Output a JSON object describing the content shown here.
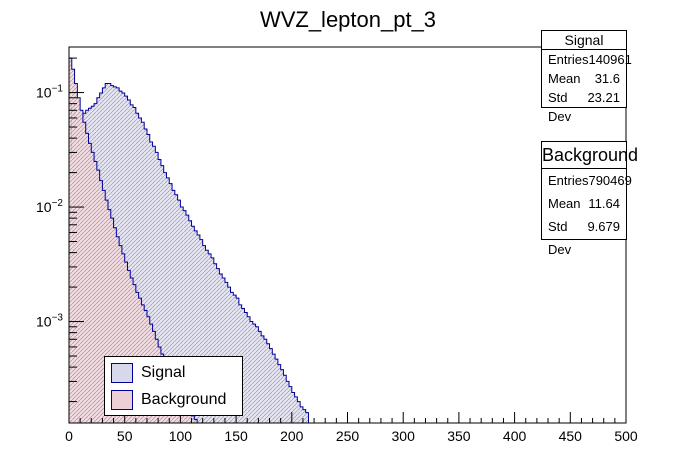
{
  "chart_data": {
    "type": "histogram",
    "title": "WVZ_lepton_pt_3",
    "xlabel": "",
    "ylabel": "",
    "xlim": [
      0,
      500
    ],
    "ylim": [
      0.00013,
      0.25
    ],
    "log_y": true,
    "x_ticks": [
      "0",
      "50",
      "100",
      "150",
      "200",
      "250",
      "300",
      "350",
      "400",
      "450",
      "500"
    ],
    "y_tick_labels": [
      {
        "value": 0.1,
        "base": "10",
        "exp": "−1"
      },
      {
        "value": 0.01,
        "base": "10",
        "exp": "−2"
      },
      {
        "value": 0.001,
        "base": "10",
        "exp": "−3"
      }
    ],
    "bin_width": 2.5,
    "series": [
      {
        "name": "Signal",
        "color": "#00009a",
        "fill": "#d8d8ec",
        "start": 0,
        "values": [
          0.027,
          0.08,
          0.058,
          0.06,
          0.062,
          0.066,
          0.07,
          0.073,
          0.076,
          0.08,
          0.09,
          0.099,
          0.11,
          0.12,
          0.12,
          0.115,
          0.112,
          0.11,
          0.103,
          0.099,
          0.093,
          0.086,
          0.078,
          0.074,
          0.066,
          0.06,
          0.055,
          0.048,
          0.043,
          0.037,
          0.034,
          0.03,
          0.026,
          0.023,
          0.02,
          0.018,
          0.016,
          0.014,
          0.0128,
          0.0115,
          0.01,
          0.0093,
          0.0085,
          0.0076,
          0.0068,
          0.0062,
          0.0057,
          0.0052,
          0.0046,
          0.0042,
          0.0039,
          0.0036,
          0.0032,
          0.0029,
          0.0026,
          0.0024,
          0.0022,
          0.002,
          0.0018,
          0.0017,
          0.0016,
          0.0014,
          0.0013,
          0.0012,
          0.0011,
          0.001,
          0.00095,
          0.0009,
          0.00082,
          0.00075,
          0.0007,
          0.00064,
          0.00058,
          0.00052,
          0.00047,
          0.00042,
          0.00038,
          0.00034,
          0.0003,
          0.00027,
          0.00024,
          0.00022,
          0.0002,
          0.00018,
          0.00017,
          0.00016
        ]
      },
      {
        "name": "Background",
        "color": "#00009a",
        "fill": "#ecd0d6",
        "start": 0,
        "values": [
          0.2,
          0.16,
          0.12,
          0.09,
          0.07,
          0.055,
          0.044,
          0.036,
          0.03,
          0.025,
          0.021,
          0.017,
          0.014,
          0.0115,
          0.0095,
          0.008,
          0.0066,
          0.0055,
          0.0046,
          0.0039,
          0.0033,
          0.0028,
          0.0024,
          0.0021,
          0.0018,
          0.0016,
          0.0014,
          0.00125,
          0.0011,
          0.00095,
          0.00082,
          0.0007,
          0.0006,
          0.00052,
          0.00044,
          0.00038,
          0.00033,
          0.00029,
          0.00025,
          0.00022,
          0.0002,
          0.00018,
          0.00017,
          0.00016,
          0.00015,
          0.00014
        ]
      }
    ],
    "legend": {
      "position": "bottom-left",
      "entries": [
        "Signal",
        "Background"
      ]
    }
  },
  "stats": {
    "signal": {
      "title": "Signal",
      "entries_label": "Entries",
      "entries": "140961",
      "mean_label": "Mean",
      "mean": "31.6",
      "std_label": "Std Dev",
      "std": "23.21"
    },
    "background": {
      "title": "Background",
      "entries_label": "Entries",
      "entries": "790469",
      "mean_label": "Mean",
      "mean": "11.64",
      "std_label": "Std Dev",
      "std": "9.679"
    }
  },
  "legend_labels": {
    "signal": "Signal",
    "background": "Background"
  }
}
